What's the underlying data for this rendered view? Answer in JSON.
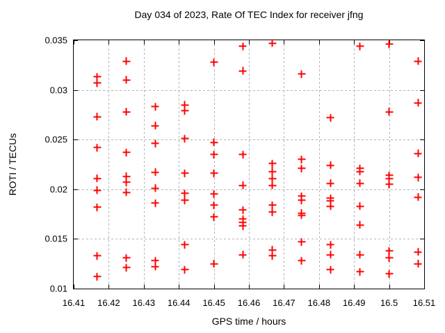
{
  "chart_data": {
    "type": "scatter",
    "title": "Day 034 of 2023, Rate Of TEC Index for receiver jfng",
    "xlabel": "GPS time / hours",
    "ylabel": "ROTI / TECUs",
    "xlim": [
      16.41,
      16.51
    ],
    "ylim": [
      0.01,
      0.035
    ],
    "xticks": [
      16.41,
      16.42,
      16.43,
      16.44,
      16.45,
      16.46,
      16.47,
      16.48,
      16.49,
      16.5,
      16.51
    ],
    "xtick_labels": [
      "16.41",
      "16.42",
      "16.43",
      "16.44",
      "16.45",
      "16.46",
      "16.47",
      "16.48",
      "16.49",
      "16.5",
      "16.51"
    ],
    "yticks": [
      0.01,
      0.015,
      0.02,
      0.025,
      0.03,
      0.035
    ],
    "ytick_labels": [
      "0.01",
      "0.015",
      "0.02",
      "0.025",
      "0.03",
      "0.035"
    ],
    "grid": true,
    "legend": false,
    "marker": "plus",
    "marker_color": "#ff0000",
    "series": [
      {
        "name": "ROTI",
        "points": [
          [
            16.4167,
            0.0313
          ],
          [
            16.4167,
            0.0307
          ],
          [
            16.4167,
            0.0273
          ],
          [
            16.4167,
            0.0242
          ],
          [
            16.4167,
            0.0211
          ],
          [
            16.4167,
            0.0199
          ],
          [
            16.4167,
            0.0182
          ],
          [
            16.4167,
            0.0133
          ],
          [
            16.4167,
            0.0112
          ],
          [
            16.425,
            0.0329
          ],
          [
            16.425,
            0.031
          ],
          [
            16.425,
            0.0278
          ],
          [
            16.425,
            0.0237
          ],
          [
            16.425,
            0.0213
          ],
          [
            16.425,
            0.0207
          ],
          [
            16.425,
            0.0197
          ],
          [
            16.425,
            0.0131
          ],
          [
            16.425,
            0.0121
          ],
          [
            16.4333,
            0.0283
          ],
          [
            16.4333,
            0.0264
          ],
          [
            16.4333,
            0.0246
          ],
          [
            16.4333,
            0.0217
          ],
          [
            16.4333,
            0.0201
          ],
          [
            16.4333,
            0.0186
          ],
          [
            16.4333,
            0.0128
          ],
          [
            16.4333,
            0.0122
          ],
          [
            16.4417,
            0.0285
          ],
          [
            16.4417,
            0.0279
          ],
          [
            16.4417,
            0.0251
          ],
          [
            16.4417,
            0.0216
          ],
          [
            16.4417,
            0.0196
          ],
          [
            16.4417,
            0.0189
          ],
          [
            16.4417,
            0.0144
          ],
          [
            16.4417,
            0.0119
          ],
          [
            16.45,
            0.0328
          ],
          [
            16.45,
            0.0247
          ],
          [
            16.45,
            0.0235
          ],
          [
            16.45,
            0.0216
          ],
          [
            16.45,
            0.0195
          ],
          [
            16.45,
            0.0184
          ],
          [
            16.45,
            0.0172
          ],
          [
            16.45,
            0.0125
          ],
          [
            16.4583,
            0.0344
          ],
          [
            16.4583,
            0.0319
          ],
          [
            16.4583,
            0.0235
          ],
          [
            16.4583,
            0.0204
          ],
          [
            16.4583,
            0.0179
          ],
          [
            16.4583,
            0.017
          ],
          [
            16.4583,
            0.0167
          ],
          [
            16.4583,
            0.0163
          ],
          [
            16.4583,
            0.0134
          ],
          [
            16.4667,
            0.0347
          ],
          [
            16.4667,
            0.0226
          ],
          [
            16.4667,
            0.0218
          ],
          [
            16.4667,
            0.0211
          ],
          [
            16.4667,
            0.0204
          ],
          [
            16.4667,
            0.0184
          ],
          [
            16.4667,
            0.0177
          ],
          [
            16.4667,
            0.0139
          ],
          [
            16.4667,
            0.0133
          ],
          [
            16.475,
            0.0316
          ],
          [
            16.475,
            0.023
          ],
          [
            16.475,
            0.0221
          ],
          [
            16.475,
            0.0193
          ],
          [
            16.475,
            0.0189
          ],
          [
            16.475,
            0.0176
          ],
          [
            16.475,
            0.0174
          ],
          [
            16.475,
            0.0147
          ],
          [
            16.475,
            0.0128
          ],
          [
            16.4833,
            0.0272
          ],
          [
            16.4833,
            0.0224
          ],
          [
            16.4833,
            0.0206
          ],
          [
            16.4833,
            0.0191
          ],
          [
            16.4833,
            0.0188
          ],
          [
            16.4833,
            0.0183
          ],
          [
            16.4833,
            0.0144
          ],
          [
            16.4833,
            0.0134
          ],
          [
            16.4833,
            0.0119
          ],
          [
            16.4917,
            0.0344
          ],
          [
            16.4917,
            0.0221
          ],
          [
            16.4917,
            0.0218
          ],
          [
            16.4917,
            0.0206
          ],
          [
            16.4917,
            0.0183
          ],
          [
            16.4917,
            0.0164
          ],
          [
            16.4917,
            0.0134
          ],
          [
            16.4917,
            0.0117
          ],
          [
            16.5,
            0.0346
          ],
          [
            16.5,
            0.0278
          ],
          [
            16.5,
            0.0214
          ],
          [
            16.5,
            0.0211
          ],
          [
            16.5,
            0.0205
          ],
          [
            16.5,
            0.0138
          ],
          [
            16.5,
            0.0131
          ],
          [
            16.5,
            0.0115
          ],
          [
            16.5083,
            0.0329
          ],
          [
            16.5083,
            0.0287
          ],
          [
            16.5083,
            0.0236
          ],
          [
            16.5083,
            0.0212
          ],
          [
            16.5083,
            0.0192
          ],
          [
            16.5083,
            0.0137
          ],
          [
            16.5083,
            0.0125
          ]
        ]
      }
    ]
  }
}
